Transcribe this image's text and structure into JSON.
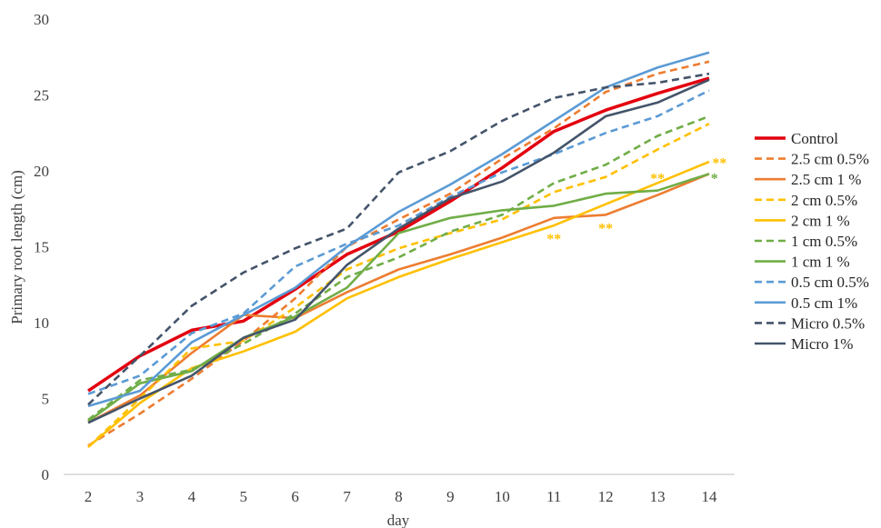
{
  "chart_data": {
    "type": "line",
    "title": "",
    "xlabel": "day",
    "ylabel": "Primary root length (cm)",
    "xlim": [
      2,
      14
    ],
    "ylim": [
      0,
      30
    ],
    "x": [
      2,
      3,
      4,
      5,
      6,
      7,
      8,
      9,
      10,
      11,
      12,
      13,
      14
    ],
    "x_ticks": [
      "2",
      "3",
      "4",
      "5",
      "6",
      "7",
      "8",
      "9",
      "10",
      "11",
      "12",
      "13",
      "14"
    ],
    "y_ticks": [
      "0",
      "5",
      "10",
      "15",
      "20",
      "25",
      "30"
    ],
    "grid": false,
    "legend": "right",
    "series": [
      {
        "name": "Control",
        "color": "#e3000f",
        "dash": "solid",
        "bold": true,
        "values": [
          5.5,
          7.8,
          9.5,
          10.1,
          12.2,
          14.5,
          16.0,
          18.0,
          20.2,
          22.6,
          24.0,
          25.1,
          26.1
        ]
      },
      {
        "name": "2.5 cm 0.5%",
        "color": "#ed7d31",
        "dash": "dashed",
        "values": [
          1.9,
          4.0,
          6.3,
          8.8,
          11.6,
          15.0,
          16.8,
          18.5,
          20.8,
          22.8,
          25.2,
          26.4,
          27.2
        ]
      },
      {
        "name": "2.5 cm 1 %",
        "color": "#ed7d31",
        "dash": "solid",
        "values": [
          3.4,
          5.2,
          8.0,
          10.5,
          10.3,
          12.0,
          13.5,
          14.5,
          15.6,
          16.9,
          17.1,
          18.4,
          19.8
        ]
      },
      {
        "name": "2 cm 0.5%",
        "color": "#ffc000",
        "dash": "dashed",
        "values": [
          1.8,
          5.0,
          8.3,
          8.8,
          11.0,
          13.5,
          14.9,
          15.9,
          16.8,
          18.6,
          19.6,
          21.4,
          23.1
        ]
      },
      {
        "name": "2 cm 1 %",
        "color": "#ffc000",
        "dash": "solid",
        "values": [
          1.8,
          4.7,
          7.0,
          8.1,
          9.4,
          11.6,
          13.0,
          14.2,
          15.3,
          16.4,
          17.8,
          19.2,
          20.6
        ]
      },
      {
        "name": "1 cm 0.5%",
        "color": "#70ad47",
        "dash": "dashed",
        "values": [
          3.6,
          6.2,
          6.9,
          8.6,
          10.6,
          13.0,
          14.3,
          16.0,
          17.1,
          19.2,
          20.4,
          22.3,
          23.6
        ]
      },
      {
        "name": "1 cm 1 %",
        "color": "#70ad47",
        "dash": "solid",
        "values": [
          3.5,
          6.0,
          6.8,
          9.0,
          10.4,
          12.3,
          15.9,
          16.9,
          17.4,
          17.7,
          18.5,
          18.7,
          19.8
        ]
      },
      {
        "name": "0.5 cm 0.5%",
        "color": "#5b9bd5",
        "dash": "dashed",
        "values": [
          5.3,
          6.5,
          9.3,
          10.6,
          13.7,
          15.2,
          16.4,
          18.3,
          19.9,
          21.1,
          22.5,
          23.6,
          25.3
        ]
      },
      {
        "name": "0.5 cm 1%",
        "color": "#5b9bd5",
        "dash": "solid",
        "values": [
          4.5,
          5.5,
          8.7,
          10.5,
          12.3,
          15.0,
          17.3,
          19.1,
          21.1,
          23.3,
          25.5,
          26.8,
          27.8
        ]
      },
      {
        "name": "Micro 0.5%",
        "color": "#44546a",
        "dash": "dashed",
        "values": [
          4.6,
          7.8,
          11.1,
          13.3,
          14.9,
          16.2,
          19.9,
          21.3,
          23.3,
          24.8,
          25.5,
          25.8,
          26.4
        ]
      },
      {
        "name": "Micro 1%",
        "color": "#44546a",
        "dash": "solid",
        "values": [
          3.4,
          5.0,
          6.5,
          9.0,
          10.2,
          13.8,
          16.2,
          18.2,
          19.3,
          21.2,
          23.6,
          24.5,
          26.0
        ]
      }
    ],
    "annotations": [
      {
        "text": "**",
        "color": "#ffc000",
        "x": 11,
        "y": 15.5
      },
      {
        "text": "**",
        "color": "#ffc000",
        "x": 12,
        "y": 16.2
      },
      {
        "text": "**",
        "color": "#ffc000",
        "x": 13,
        "y": 19.5
      },
      {
        "text": "**",
        "color": "#ffc000",
        "x": 14.2,
        "y": 20.5
      },
      {
        "text": "*",
        "color": "#70ad47",
        "x": 14.1,
        "y": 19.5
      }
    ]
  }
}
